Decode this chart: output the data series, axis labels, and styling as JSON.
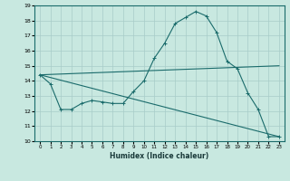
{
  "xlabel": "Humidex (Indice chaleur)",
  "xlim": [
    -0.5,
    23.5
  ],
  "ylim": [
    10,
    19
  ],
  "yticks": [
    10,
    11,
    12,
    13,
    14,
    15,
    16,
    17,
    18,
    19
  ],
  "xticks": [
    0,
    1,
    2,
    3,
    4,
    5,
    6,
    7,
    8,
    9,
    10,
    11,
    12,
    13,
    14,
    15,
    16,
    17,
    18,
    19,
    20,
    21,
    22,
    23
  ],
  "bg_color": "#c8e8e0",
  "line_color": "#1a6b6b",
  "grid_color": "#a8ccc8",
  "line1_x": [
    0,
    1,
    2,
    3,
    4,
    5,
    6,
    7,
    8,
    9,
    10,
    11,
    12,
    13,
    14,
    15,
    16,
    17,
    18,
    19,
    20,
    21,
    22,
    23
  ],
  "line1_y": [
    14.4,
    13.8,
    12.1,
    12.1,
    12.5,
    12.7,
    12.6,
    12.5,
    12.5,
    13.3,
    14.0,
    15.5,
    16.5,
    17.8,
    18.2,
    18.6,
    18.3,
    17.2,
    15.3,
    14.8,
    13.2,
    12.1,
    10.3,
    10.3
  ],
  "line2_x": [
    0,
    23
  ],
  "line2_y": [
    14.4,
    15.0
  ],
  "line3_x": [
    0,
    23
  ],
  "line3_y": [
    14.4,
    10.3
  ]
}
